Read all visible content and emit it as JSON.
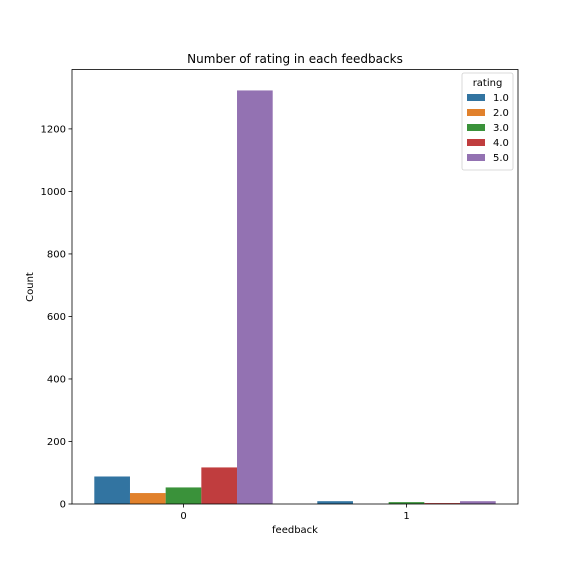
{
  "chart_data": {
    "type": "bar",
    "title": "Number of rating in each feedbacks",
    "xlabel": "feedback",
    "ylabel": "Count",
    "categories": [
      "0",
      "1"
    ],
    "ylim": [
      0,
      1390
    ],
    "yticks": [
      0,
      200,
      400,
      600,
      800,
      1000,
      1200
    ],
    "grid": false,
    "legend": {
      "title": "rating",
      "placement": "top-right"
    },
    "series": [
      {
        "name": "1.0",
        "color": "#3274a1",
        "values": [
          88,
          9
        ]
      },
      {
        "name": "2.0",
        "color": "#e1812c",
        "values": [
          35,
          0
        ]
      },
      {
        "name": "3.0",
        "color": "#3a923a",
        "values": [
          53,
          6
        ]
      },
      {
        "name": "4.0",
        "color": "#c03d3e",
        "values": [
          117,
          3
        ]
      },
      {
        "name": "5.0",
        "color": "#9372b2",
        "values": [
          1323,
          9
        ]
      }
    ]
  }
}
